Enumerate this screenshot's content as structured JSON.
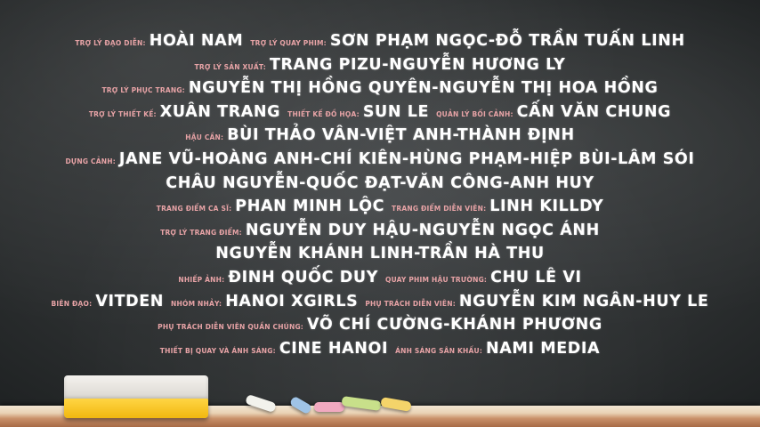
{
  "credits": [
    {
      "pairs": [
        {
          "role": "Trợ lý đạo diễn:",
          "name": "Hoài Nam"
        },
        {
          "role": "Trợ lý quay phim:",
          "name": "Sơn Phạm Ngọc-Đỗ Trần Tuấn Linh"
        }
      ]
    },
    {
      "pairs": [
        {
          "role": "Trợ lý sản xuất:",
          "name": "Trang Pizu-Nguyễn Hương Ly"
        }
      ]
    },
    {
      "pairs": [
        {
          "role": "Trợ lý phục trang:",
          "name": "Nguyễn Thị Hồng Quyên-Nguyễn Thị Hoa Hồng"
        }
      ]
    },
    {
      "pairs": [
        {
          "role": "Trợ lý thiết kế:",
          "name": "Xuân Trang"
        },
        {
          "role": "Thiết kế đồ họa:",
          "name": "Sun Le"
        },
        {
          "role": "Quản lý bối cảnh:",
          "name": "Cấn Văn Chung"
        }
      ]
    },
    {
      "pairs": [
        {
          "role": "Hậu cần:",
          "name": "Bùi Thảo Vân-Việt Anh-Thành Định"
        }
      ]
    },
    {
      "pairs": [
        {
          "role": "Dựng cảnh:",
          "name": "Jane Vũ-Hoàng Anh-Chí Kiên-Hùng Phạm-Hiệp Bùi-Lâm Sói"
        }
      ]
    },
    {
      "pairs": [
        {
          "role": "",
          "name": "Châu Nguyễn-Quốc Đạt-Văn Công-Anh Huy"
        }
      ]
    },
    {
      "pairs": [
        {
          "role": "Trang điểm ca sĩ:",
          "name": "Phan Minh Lộc"
        },
        {
          "role": "Trang điểm diễn viên:",
          "name": "Linh Killdy"
        }
      ]
    },
    {
      "pairs": [
        {
          "role": "Trợ lý trang điểm:",
          "name": "Nguyễn Duy Hậu-Nguyễn Ngọc Ánh"
        }
      ]
    },
    {
      "pairs": [
        {
          "role": "",
          "name": "Nguyễn Khánh Linh-Trần Hà Thu"
        }
      ]
    },
    {
      "pairs": [
        {
          "role": "Nhiếp ảnh:",
          "name": "Đinh Quốc Duy"
        },
        {
          "role": "Quay phim hậu trường:",
          "name": "Chu Lê Vi"
        }
      ]
    },
    {
      "pairs": [
        {
          "role": "Biên đạo:",
          "name": "Vitden"
        },
        {
          "role": "Nhóm nhảy:",
          "name": "Hanoi Xgirls"
        },
        {
          "role": "Phụ trách diễn viên:",
          "name": "Nguyễn Kim Ngân-Huy Le"
        }
      ]
    },
    {
      "pairs": [
        {
          "role": "Phụ trách diễn viên quần chúng:",
          "name": "Võ Chí Cường-Khánh Phương"
        }
      ]
    },
    {
      "pairs": [
        {
          "role": "Thiết bị quay và ánh sáng:",
          "name": "Cine Hanoi"
        },
        {
          "role": "Ánh sáng sân khấu:",
          "name": "Nami Media"
        }
      ]
    }
  ],
  "colors": {
    "role": "#e7a3a6",
    "name": "#ffffff",
    "chalkboard": "#2e3132"
  },
  "chalk_colors": [
    "#f2f2ec",
    "#9fc3e6",
    "#f1a9c0",
    "#c8e08a",
    "#f4d46a"
  ]
}
